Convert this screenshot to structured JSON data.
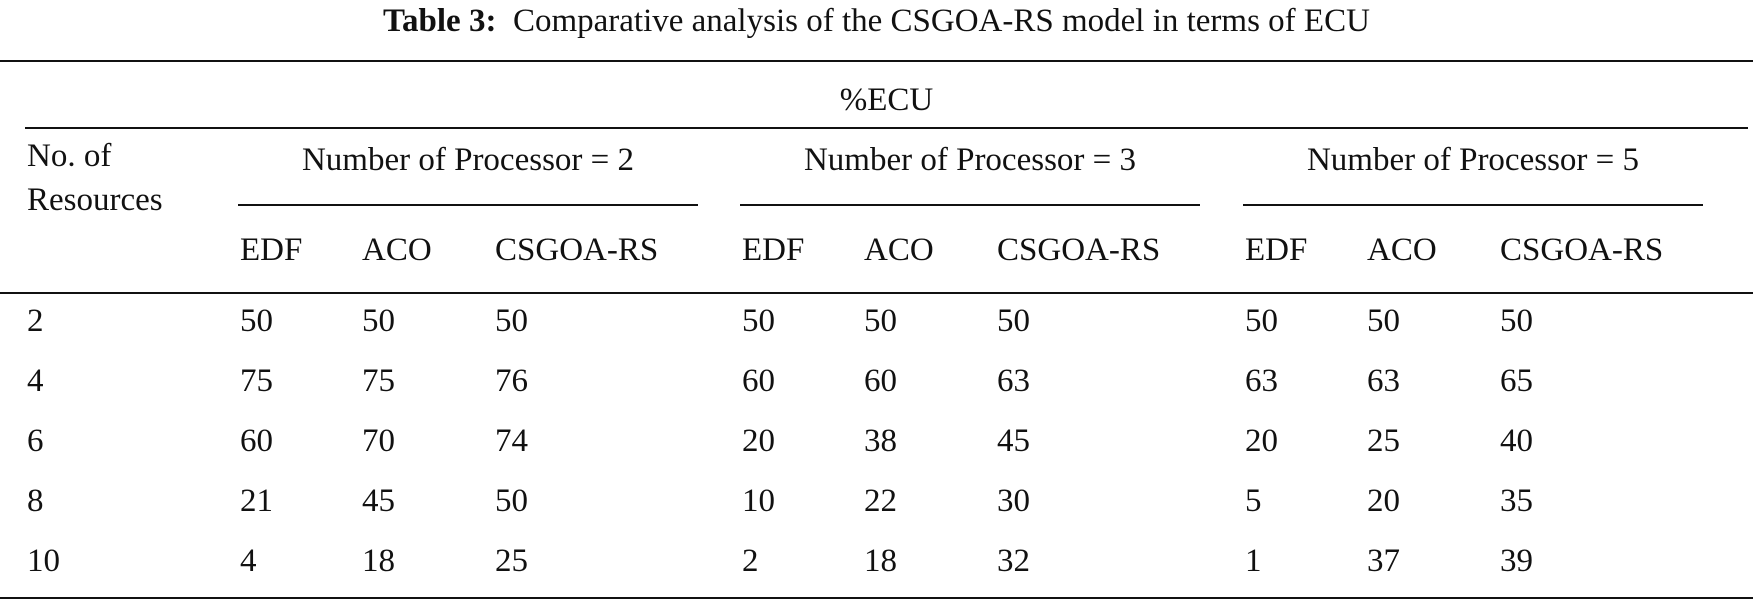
{
  "caption": {
    "label": "Table 3:",
    "text": "Comparative analysis of the CSGOA-RS model in terms of ECU"
  },
  "table": {
    "super_header": "%ECU",
    "row_header": [
      "No. of",
      "Resources"
    ],
    "groups": [
      {
        "label": "Number of Processor = 2",
        "columns": [
          "EDF",
          "ACO",
          "CSGOA-RS"
        ]
      },
      {
        "label": "Number of Processor = 3",
        "columns": [
          "EDF",
          "ACO",
          "CSGOA-RS"
        ]
      },
      {
        "label": "Number of Processor = 5",
        "columns": [
          "EDF",
          "ACO",
          "CSGOA-RS"
        ]
      }
    ],
    "rows": [
      {
        "resources": "2",
        "values": [
          "50",
          "50",
          "50",
          "50",
          "50",
          "50",
          "50",
          "50",
          "50"
        ]
      },
      {
        "resources": "4",
        "values": [
          "75",
          "75",
          "76",
          "60",
          "60",
          "63",
          "63",
          "63",
          "65"
        ]
      },
      {
        "resources": "6",
        "values": [
          "60",
          "70",
          "74",
          "20",
          "38",
          "45",
          "20",
          "25",
          "40"
        ]
      },
      {
        "resources": "8",
        "values": [
          "21",
          "45",
          "50",
          "10",
          "22",
          "30",
          "5",
          "20",
          "35"
        ]
      },
      {
        "resources": "10",
        "values": [
          "4",
          "18",
          "25",
          "2",
          "18",
          "32",
          "1",
          "37",
          "39"
        ]
      }
    ]
  }
}
